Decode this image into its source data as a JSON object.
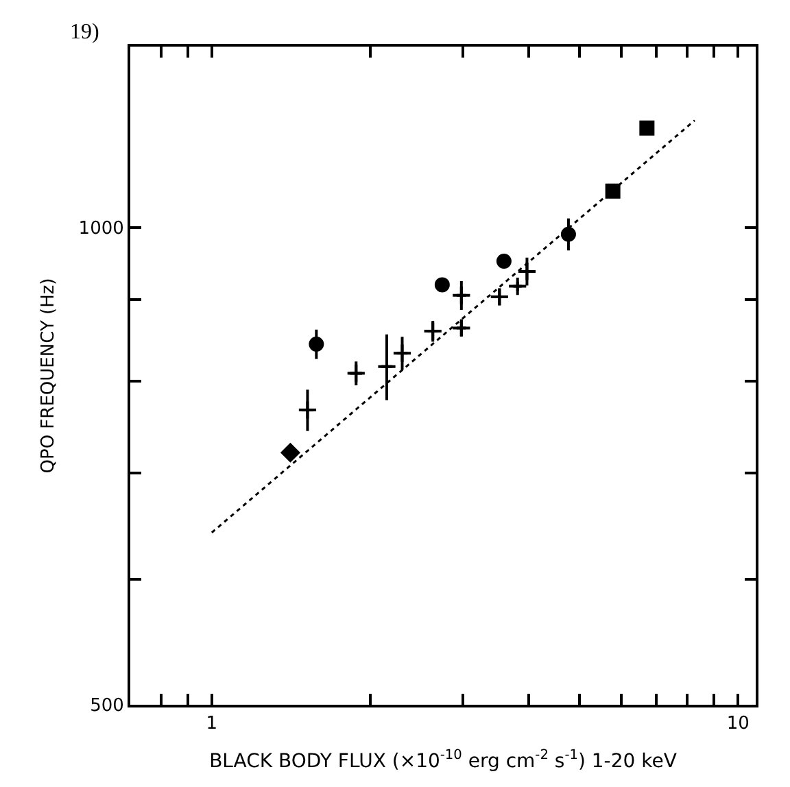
{
  "chart_data": {
    "type": "scatter",
    "xlabel": "BLACK BODY FLUX (×10$^{-10}$ erg cm$^{-2}$ s$^{-1}$) 1-20 keV",
    "ylabel": "QPO FREQUENCY (Hz)",
    "annotations": [
      "19)"
    ],
    "log": "xy",
    "xlim": [
      0.7,
      10.8
    ],
    "ylim": [
      500,
      1300
    ],
    "xticks": [
      {
        "value": 0.8,
        "label": null
      },
      {
        "value": 0.9,
        "label": null
      },
      1,
      {
        "value": 2,
        "label": null
      },
      {
        "value": 3,
        "label": null
      },
      {
        "value": 4,
        "label": null
      },
      {
        "value": 5,
        "label": null
      },
      {
        "value": 6,
        "label": null
      },
      {
        "value": 7,
        "label": null
      },
      {
        "value": 8,
        "label": null
      },
      {
        "value": 9,
        "label": null
      },
      10
    ],
    "yticks": [
      500,
      {
        "value": 600,
        "label": null
      },
      {
        "value": 700,
        "label": null
      },
      {
        "value": 800,
        "label": null
      },
      {
        "value": 900,
        "label": null
      },
      1000
    ],
    "series": [
      {
        "marker": "cross",
        "color": "#000000",
        "x": [
          1.52,
          1.88,
          2.15,
          2.3,
          2.63,
          2.98,
          2.98,
          3.52,
          3.81,
          3.97
        ],
        "values": [
          767,
          809,
          817,
          833,
          860,
          864,
          906,
          904,
          918,
          938
        ],
        "errors": [
          23,
          14,
          39,
          20,
          13,
          10,
          19,
          11,
          6,
          19
        ],
        "xerrors": [
          0.04,
          0.05,
          0.05,
          0.05,
          0.06,
          0.06,
          0.06,
          0.07,
          0.07,
          0.07
        ]
      },
      {
        "marker": "diamond",
        "color": "#000000",
        "x": [
          1.41
        ],
        "values": [
          721
        ]
      },
      {
        "marker": "circle",
        "color": "#000000",
        "x": [
          1.58,
          2.74,
          3.59,
          4.76
        ],
        "values": [
          844,
          920,
          952,
          990
        ],
        "errors": [
          18,
          8,
          5,
          23
        ]
      },
      {
        "marker": "square",
        "color": "#000000",
        "x": [
          5.78,
          6.71
        ],
        "values": [
          1054,
          1155
        ]
      },
      {
        "type": "line",
        "line_style": "dotted",
        "marker": "none",
        "color": "#000000",
        "x": [
          1,
          8.27
        ],
        "values": [
          642,
          1168
        ]
      }
    ]
  }
}
